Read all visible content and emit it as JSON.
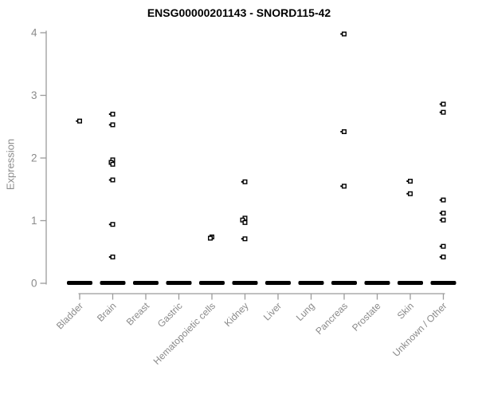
{
  "chart_data": {
    "type": "scatter",
    "subtype": "strip-plot",
    "title": "ENSG00000201143 - SNORD115-42",
    "xlabel": "",
    "ylabel": "Expression",
    "ylim": [
      0,
      4
    ],
    "yticks": [
      0,
      1,
      2,
      3,
      4
    ],
    "grid": false,
    "legend": "none",
    "marker": "open-square",
    "categories": [
      "Bladder",
      "Brain",
      "Breast",
      "Gastric",
      "Hematopoietic cells",
      "Kidney",
      "Liver",
      "Lung",
      "Pancreas",
      "Prostate",
      "Skin",
      "Unknown / Other"
    ],
    "series": [
      {
        "category": "Bladder",
        "zero_cluster": true,
        "points": [
          {
            "v": 2.59,
            "tail": true
          }
        ]
      },
      {
        "category": "Brain",
        "zero_cluster": true,
        "points": [
          {
            "v": 2.7,
            "tail": true
          },
          {
            "v": 2.53,
            "tail": true
          },
          {
            "v": 1.97
          },
          {
            "v": 1.93,
            "dx": -2
          },
          {
            "v": 1.9
          },
          {
            "v": 1.65,
            "tail": true
          },
          {
            "v": 0.94,
            "tail": true
          },
          {
            "v": 0.42,
            "tail": true
          }
        ]
      },
      {
        "category": "Breast",
        "zero_cluster": true,
        "points": []
      },
      {
        "category": "Gastric",
        "zero_cluster": true,
        "points": []
      },
      {
        "category": "Hematopoietic cells",
        "zero_cluster": true,
        "points": [
          {
            "v": 0.74
          },
          {
            "v": 0.72,
            "dx": -2
          }
        ]
      },
      {
        "category": "Kidney",
        "zero_cluster": true,
        "points": [
          {
            "v": 1.62,
            "tail": true
          },
          {
            "v": 1.04
          },
          {
            "v": 1.01,
            "dx": -3
          },
          {
            "v": 0.97
          },
          {
            "v": 0.71,
            "tail": true
          }
        ]
      },
      {
        "category": "Liver",
        "zero_cluster": true,
        "points": []
      },
      {
        "category": "Lung",
        "zero_cluster": true,
        "points": []
      },
      {
        "category": "Pancreas",
        "zero_cluster": true,
        "points": [
          {
            "v": 3.98,
            "tail": true
          },
          {
            "v": 2.42,
            "tail": true
          },
          {
            "v": 1.55,
            "tail": true
          }
        ]
      },
      {
        "category": "Prostate",
        "zero_cluster": true,
        "points": []
      },
      {
        "category": "Skin",
        "zero_cluster": true,
        "points": [
          {
            "v": 1.63,
            "tail": true
          },
          {
            "v": 1.43,
            "tail": true
          }
        ]
      },
      {
        "category": "Unknown / Other",
        "zero_cluster": true,
        "points": [
          {
            "v": 2.86,
            "tail": true
          },
          {
            "v": 2.73,
            "tail": true
          },
          {
            "v": 1.33,
            "tail": true
          },
          {
            "v": 1.12,
            "tail": true
          },
          {
            "v": 1.01,
            "tail": true
          },
          {
            "v": 0.59,
            "tail": true
          },
          {
            "v": 0.42,
            "tail": true
          }
        ]
      }
    ],
    "colors": {
      "point": "#000000",
      "zero_dash": "#000000",
      "axis_line": "#9b9b9b",
      "tick_label": "#8a8a8a",
      "title": "#000000",
      "background": "#ffffff"
    }
  }
}
